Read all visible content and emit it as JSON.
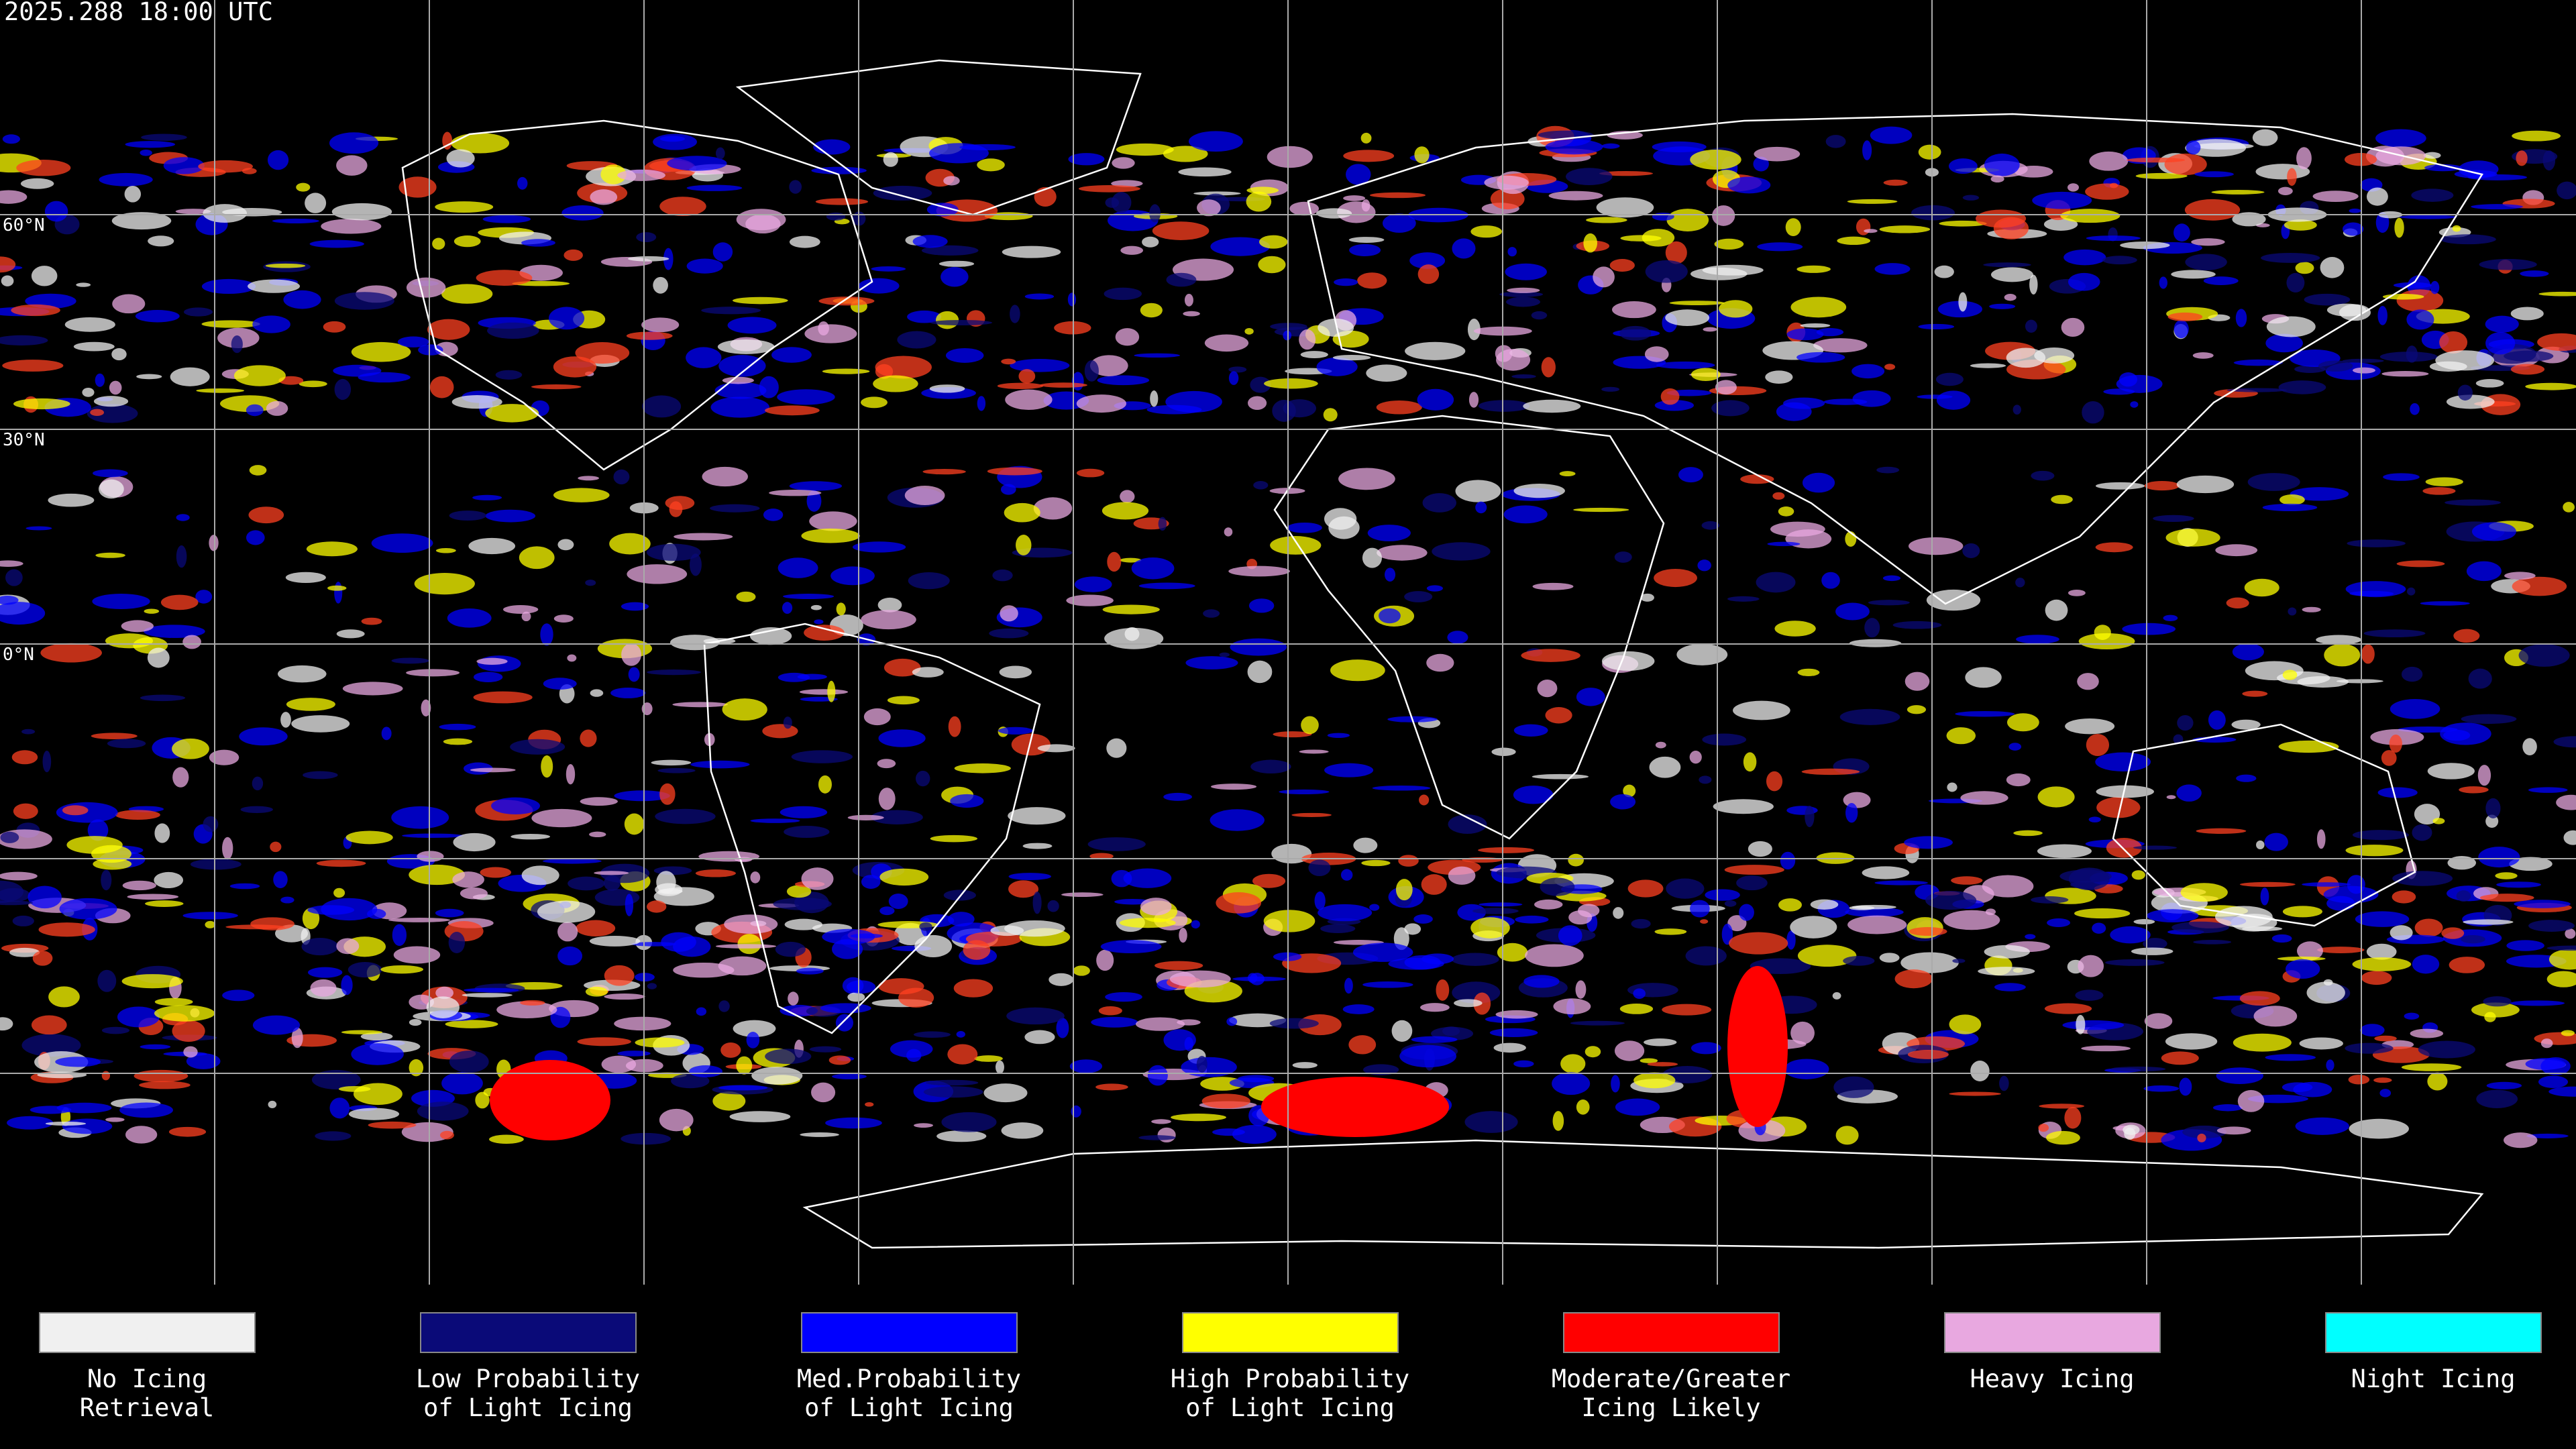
{
  "header": {
    "timestamp": "2025.288 18:00 UTC"
  },
  "map": {
    "lat_labels": [
      "60°N",
      "30°N",
      "0°N"
    ]
  },
  "legend": [
    {
      "color": "#f0f0f0",
      "lines": [
        "No Icing",
        "Retrieval"
      ]
    },
    {
      "color": "#0a0a78",
      "lines": [
        "Low Probability",
        "of Light Icing"
      ]
    },
    {
      "color": "#0000ff",
      "lines": [
        "Med.Probability",
        "of Light Icing"
      ]
    },
    {
      "color": "#ffff00",
      "lines": [
        "High Probability",
        "of Light Icing"
      ]
    },
    {
      "color": "#ff0000",
      "lines": [
        "Moderate/Greater",
        "Icing Likely"
      ]
    },
    {
      "color": "#e8a8e0",
      "lines": [
        "Heavy Icing"
      ]
    },
    {
      "color": "#00ffff",
      "lines": [
        "Night Icing"
      ]
    }
  ]
}
